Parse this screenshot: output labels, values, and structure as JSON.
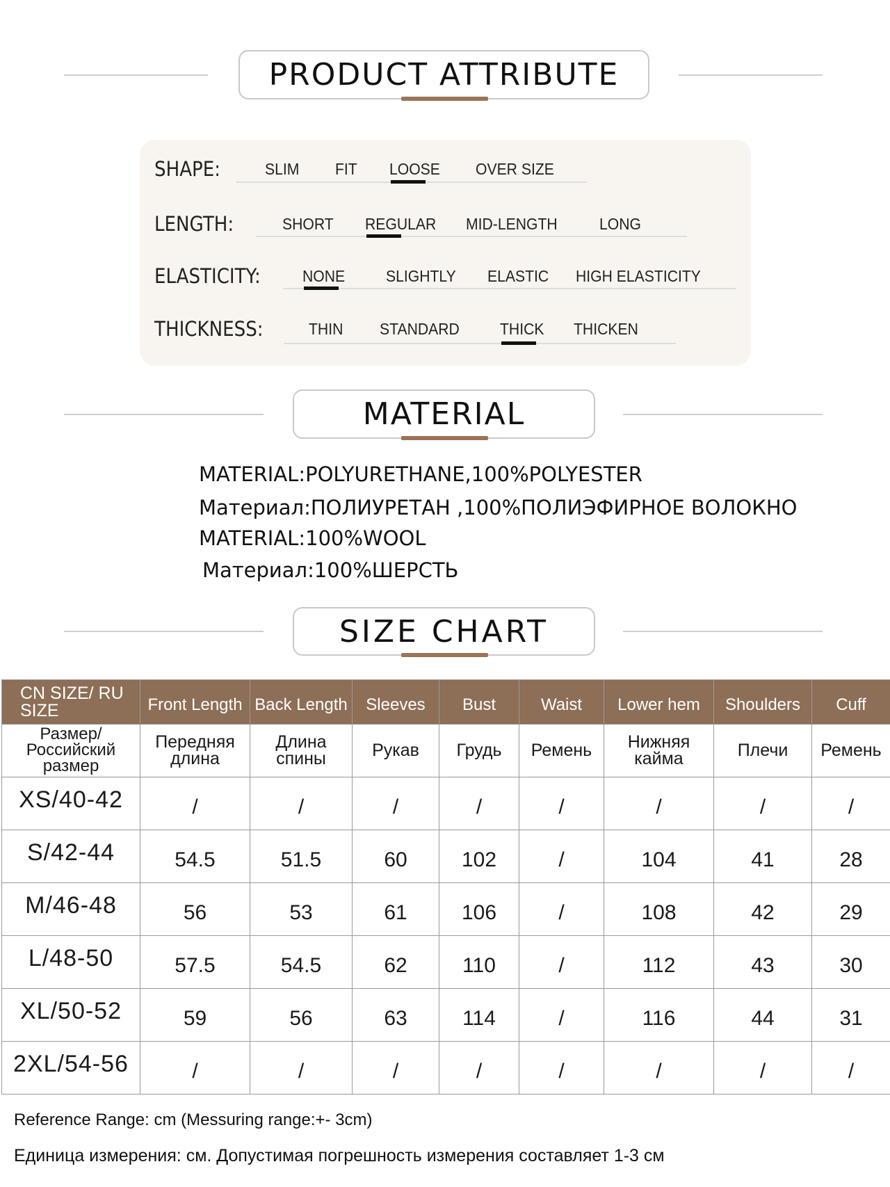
{
  "attribute": {
    "title": "PRODUCT ATTRIBUTE",
    "rows": [
      {
        "label": "SHAPE:",
        "options": [
          "SLIM",
          "FIT",
          "LOOSE",
          "OVER SIZE"
        ],
        "selected": "LOOSE"
      },
      {
        "label": "LENGTH:",
        "options": [
          "SHORT",
          "REGULAR",
          "MID-LENGTH",
          "LONG"
        ],
        "selected": "REGULAR"
      },
      {
        "label": "ELASTICITY:",
        "options": [
          "NONE",
          "SLIGHTLY",
          "ELASTIC",
          "HIGH ELASTICITY"
        ],
        "selected": "NONE"
      },
      {
        "label": "THICKNESS:",
        "options": [
          "THIN",
          "STANDARD",
          "THICK",
          "THICKEN"
        ],
        "selected": "THICK"
      }
    ]
  },
  "material": {
    "title": "MATERIAL",
    "lines": [
      "MATERIAL:POLYURETHANE,100%POLYESTER",
      "Материал:ПОЛИУРЕТАН ,100%ПОЛИЭФИРНОЕ ВОЛОКНО",
      "MATERIAL:100%WOOL",
      "Материал:100%ШЕРСТЬ"
    ]
  },
  "size_chart": {
    "title": "SIZE CHART",
    "headers": [
      "CN SIZE/ RU SIZE",
      "Front Length",
      "Back Length",
      "Sleeves",
      "Bust",
      "Waist",
      "Lower hem",
      "Shoulders",
      "Cuff"
    ],
    "headers_ru": [
      "Размер/ Российский размер",
      "Передняя длина",
      "Длина спины",
      "Рукав",
      "Грудь",
      "Ремень",
      "Нижняя кайма",
      "Плечи",
      "Ремень"
    ],
    "rows": [
      [
        "XS/40-42",
        "/",
        "/",
        "/",
        "/",
        "/",
        "/",
        "/",
        "/"
      ],
      [
        "S/42-44",
        "54.5",
        "51.5",
        "60",
        "102",
        "/",
        "104",
        "41",
        "28"
      ],
      [
        "M/46-48",
        "56",
        "53",
        "61",
        "106",
        "/",
        "108",
        "42",
        "29"
      ],
      [
        "L/48-50",
        "57.5",
        "54.5",
        "62",
        "110",
        "/",
        "112",
        "43",
        "30"
      ],
      [
        "XL/50-52",
        "59",
        "56",
        "63",
        "114",
        "/",
        "116",
        "44",
        "31"
      ],
      [
        "2XL/54-56",
        "/",
        "/",
        "/",
        "/",
        "/",
        "/",
        "/",
        "/"
      ]
    ],
    "note_en": "Reference Range: cm (Messuring range:+- 3cm)",
    "note_ru": "Единица измерения: см. Допустимая погрешность измерения составляет 1-3 см"
  },
  "colors": {
    "accent": "#9a7458",
    "header_bg": "#8d6e56",
    "panel_bg": "#f8f5f0"
  }
}
